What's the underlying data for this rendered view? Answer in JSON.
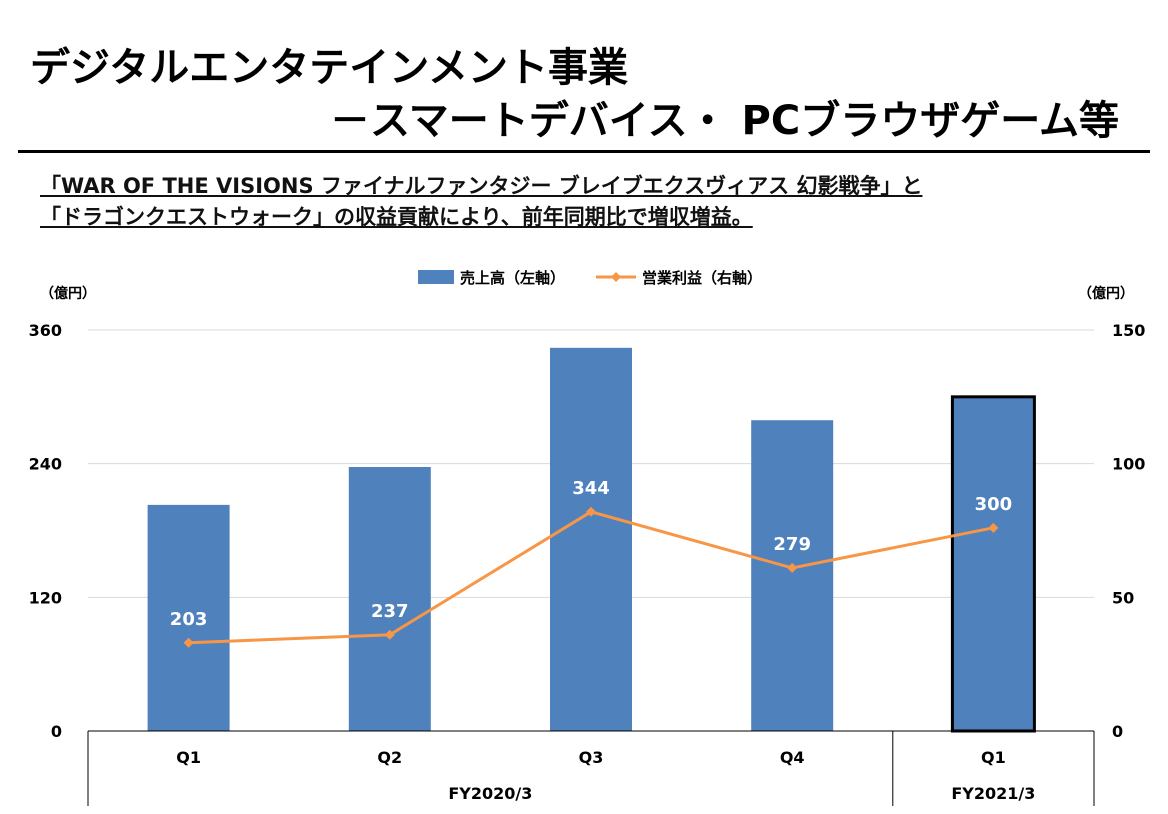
{
  "header": {
    "title_line1": "デジタルエンタテインメント事業",
    "title_line2": "－スマートデバイス・ PCブラウザゲーム等",
    "subtitle_line1": "「WAR OF THE VISIONS ファイナルファンタジー ブレイブエクスヴィアス 幻影戦争」と",
    "subtitle_line2": "「ドラゴンクエストウォーク」の収益貢献により、前年同期比で増収増益。"
  },
  "chart_data": {
    "type": "bar",
    "categories": [
      "Q1",
      "Q2",
      "Q3",
      "Q4",
      "Q1"
    ],
    "groups": [
      {
        "label": "FY2020/3",
        "span": 4
      },
      {
        "label": "FY2021/3",
        "span": 1
      }
    ],
    "series": [
      {
        "name": "売上高（左軸）",
        "type": "bar",
        "axis": "left",
        "values": [
          203,
          237,
          344,
          279,
          300
        ],
        "color": "#4F81BD",
        "data_labels": [
          "203",
          "237",
          "344",
          "279",
          "300"
        ],
        "highlight_index": 4
      },
      {
        "name": "営業利益（右軸）",
        "type": "line",
        "axis": "right",
        "values": [
          33,
          36,
          82,
          61,
          76
        ],
        "color": "#F79646"
      }
    ],
    "y_left": {
      "unit": "（億円）",
      "min": 0,
      "max": 360,
      "ticks": [
        "0",
        "120",
        "240",
        "360"
      ]
    },
    "y_right": {
      "unit": "（億円）",
      "min": 0,
      "max": 150,
      "ticks": [
        "0",
        "50",
        "100",
        "150"
      ]
    },
    "grid": true,
    "legend_position": "top"
  }
}
